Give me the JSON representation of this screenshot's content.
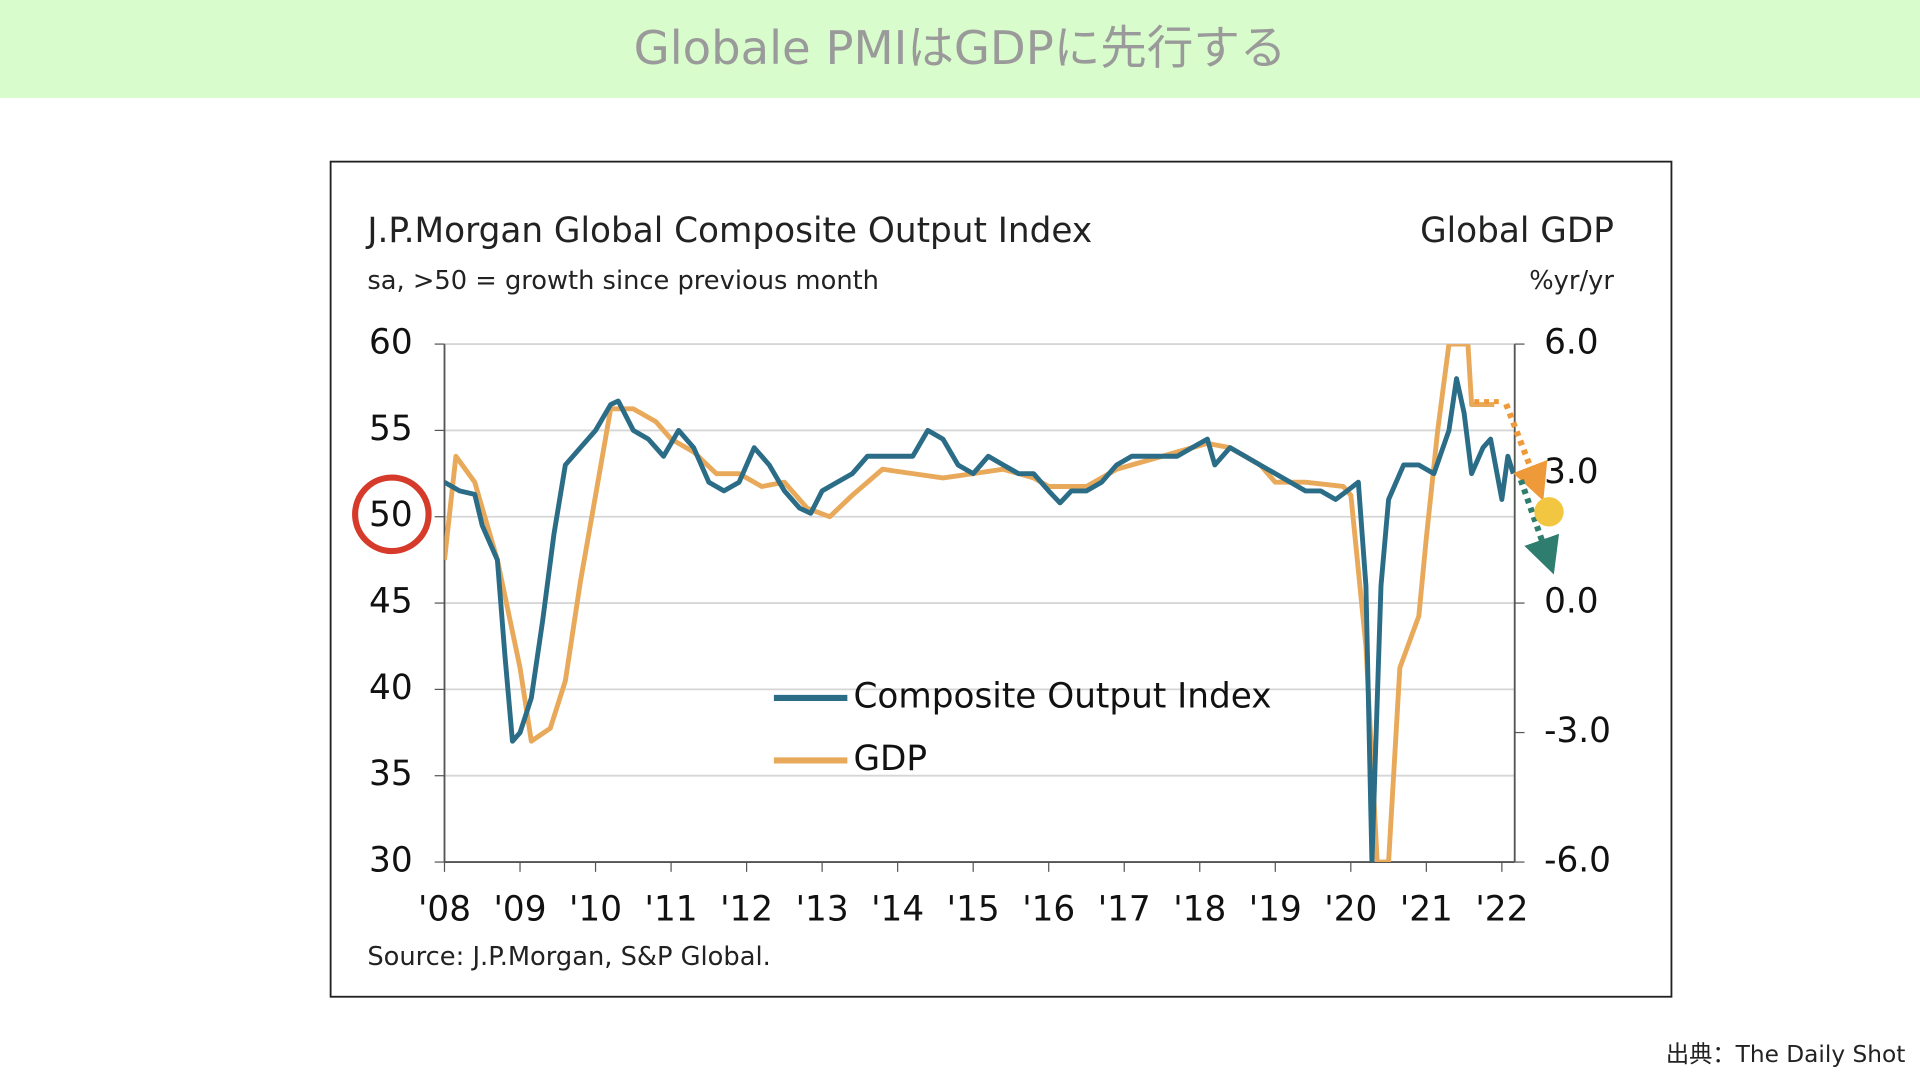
{
  "header": {
    "title": "Globale PMIはGDPに先行する"
  },
  "footer": {
    "credit": "出典：The Daily Shot"
  },
  "chart_data": {
    "type": "line",
    "title": "J.P.Morgan Global Composite Output Index",
    "subtitle": "sa, >50 = growth since previous month",
    "y2_title": "Global GDP",
    "y2_subtitle": "%yr/yr",
    "source": "Source: J.P.Morgan, S&P Global.",
    "xlim": [
      2008,
      2022.17
    ],
    "xticks": [
      {
        "value": 2008,
        "label": "'08"
      },
      {
        "value": 2009,
        "label": "'09"
      },
      {
        "value": 2010,
        "label": "'10"
      },
      {
        "value": 2011,
        "label": "'11"
      },
      {
        "value": 2012,
        "label": "'12"
      },
      {
        "value": 2013,
        "label": "'13"
      },
      {
        "value": 2014,
        "label": "'14"
      },
      {
        "value": 2015,
        "label": "'15"
      },
      {
        "value": 2016,
        "label": "'16"
      },
      {
        "value": 2017,
        "label": "'17"
      },
      {
        "value": 2018,
        "label": "'18"
      },
      {
        "value": 2019,
        "label": "'19"
      },
      {
        "value": 2020,
        "label": "'20"
      },
      {
        "value": 2021,
        "label": "'21"
      },
      {
        "value": 2022,
        "label": "'22"
      }
    ],
    "ylim": [
      30,
      60
    ],
    "yticks": [
      30,
      35,
      40,
      45,
      50,
      55,
      60
    ],
    "y2lim": [
      -6,
      6
    ],
    "y2ticks": [
      {
        "value": -6,
        "label": "-6.0"
      },
      {
        "value": -3,
        "label": "-3.0"
      },
      {
        "value": 0,
        "label": "0.0"
      },
      {
        "value": 3,
        "label": "3.0"
      },
      {
        "value": 6,
        "label": "6.0"
      }
    ],
    "grid": true,
    "legend": "center",
    "series": [
      {
        "name": "Composite Output Index",
        "color": "#2b6c87",
        "x": [
          2008.0,
          2008.2,
          2008.4,
          2008.5,
          2008.7,
          2008.8,
          2008.9,
          2009.0,
          2009.15,
          2009.3,
          2009.45,
          2009.6,
          2009.8,
          2010.0,
          2010.2,
          2010.3,
          2010.5,
          2010.7,
          2010.9,
          2011.1,
          2011.3,
          2011.5,
          2011.7,
          2011.9,
          2012.1,
          2012.3,
          2012.5,
          2012.7,
          2012.85,
          2013.0,
          2013.2,
          2013.4,
          2013.6,
          2013.8,
          2014.0,
          2014.2,
          2014.4,
          2014.6,
          2014.8,
          2015.0,
          2015.2,
          2015.4,
          2015.6,
          2015.8,
          2016.0,
          2016.15,
          2016.3,
          2016.5,
          2016.7,
          2016.9,
          2017.1,
          2017.3,
          2017.5,
          2017.7,
          2017.9,
          2018.1,
          2018.2,
          2018.4,
          2018.6,
          2018.8,
          2019.0,
          2019.2,
          2019.4,
          2019.6,
          2019.8,
          2019.95,
          2020.1,
          2020.2,
          2020.28,
          2020.4,
          2020.5,
          2020.7,
          2020.9,
          2021.1,
          2021.3,
          2021.4,
          2021.5,
          2021.6,
          2021.75,
          2021.85,
          2022.0,
          2022.08,
          2022.15
        ],
        "values": [
          52,
          51.5,
          51.3,
          49.5,
          47.5,
          42,
          37,
          37.5,
          39.5,
          44,
          49,
          53,
          54,
          55,
          56.5,
          56.7,
          55,
          54.5,
          53.5,
          55,
          54,
          52,
          51.5,
          52,
          54,
          53,
          51.5,
          50.5,
          50.2,
          51.5,
          52,
          52.5,
          53.5,
          53.5,
          53.5,
          53.5,
          55,
          54.5,
          53,
          52.5,
          53.5,
          53,
          52.5,
          52.5,
          51.5,
          50.8,
          51.5,
          51.5,
          52,
          53,
          53.5,
          53.5,
          53.5,
          53.5,
          54,
          54.5,
          53,
          54,
          53.5,
          53,
          52.5,
          52,
          51.5,
          51.5,
          51,
          51.5,
          52,
          46,
          30,
          46,
          51,
          53,
          53,
          52.5,
          55,
          58,
          56,
          52.5,
          54,
          54.5,
          51,
          53.5,
          52.5
        ]
      },
      {
        "name": "GDP",
        "color": "#e9a95a",
        "axis": "y2",
        "x": [
          2008.0,
          2008.15,
          2008.4,
          2008.7,
          2009.0,
          2009.15,
          2009.4,
          2009.6,
          2009.8,
          2010.0,
          2010.2,
          2010.5,
          2010.8,
          2011.0,
          2011.3,
          2011.6,
          2011.9,
          2012.2,
          2012.5,
          2012.8,
          2013.1,
          2013.4,
          2013.8,
          2014.2,
          2014.6,
          2015.0,
          2015.4,
          2015.8,
          2016.0,
          2016.5,
          2016.9,
          2017.3,
          2017.7,
          2018.1,
          2018.4,
          2018.8,
          2019.0,
          2019.4,
          2019.9,
          2020.0,
          2020.2,
          2020.35,
          2020.5,
          2020.65,
          2020.9,
          2021.0,
          2021.15,
          2021.3,
          2021.55,
          2021.6,
          2021.9
        ],
        "values": [
          1.0,
          3.4,
          2.8,
          1.0,
          -1.5,
          -3.2,
          -2.9,
          -1.8,
          0.5,
          2.5,
          4.5,
          4.5,
          4.2,
          3.8,
          3.5,
          3.0,
          3.0,
          2.7,
          2.8,
          2.2,
          2.0,
          2.5,
          3.1,
          3.0,
          2.9,
          3.0,
          3.1,
          2.9,
          2.7,
          2.7,
          3.1,
          3.3,
          3.5,
          3.7,
          3.6,
          3.2,
          2.8,
          2.8,
          2.7,
          2.5,
          -1.0,
          -6.0,
          -6.0,
          -1.5,
          -0.3,
          1.5,
          4.0,
          6.0,
          6.0,
          4.6,
          4.6
        ]
      }
    ]
  }
}
